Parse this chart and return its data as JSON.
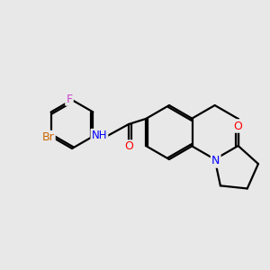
{
  "background_color": "#e8e8e8",
  "bond_color": "#000000",
  "atom_colors": {
    "O": "#ff0000",
    "N": "#0000ff",
    "F": "#cc44cc",
    "Br": "#cc6600",
    "H": "#4488cc",
    "C": "#000000"
  },
  "figsize": [
    3.0,
    3.0
  ],
  "dpi": 100
}
